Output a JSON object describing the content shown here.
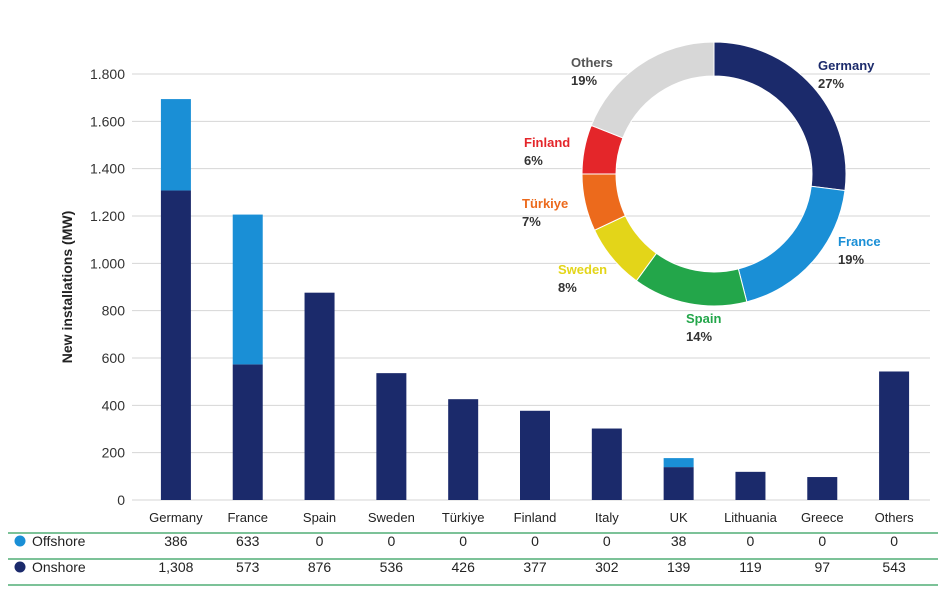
{
  "colors": {
    "offshore": "#1a8fd6",
    "onshore": "#1b2a6b",
    "grid": "#d6d6d6",
    "table_line": "#2e9e5b",
    "Germany": "#1b2a6b",
    "France": "#1a8fd6",
    "Spain": "#23a64a",
    "Sweden": "#e3d519",
    "Türkiye": "#ec6a1c",
    "Finland": "#e4262a",
    "Others": "#d7d7d7"
  },
  "chart_data": [
    {
      "type": "bar",
      "stacked": true,
      "ylabel": "New installations (MW)",
      "ylim": [
        0,
        1800
      ],
      "yticks": [
        0,
        200,
        400,
        600,
        800,
        1000,
        1200,
        1400,
        1600,
        1800
      ],
      "ytick_labels": [
        "0",
        "200",
        "400",
        "600",
        "800",
        "1.000",
        "1.200",
        "1.400",
        "1.600",
        "1.800"
      ],
      "categories": [
        "Germany",
        "France",
        "Spain",
        "Sweden",
        "Türkiye",
        "Finland",
        "Italy",
        "UK",
        "Lithuania",
        "Greece",
        "Others"
      ],
      "series": [
        {
          "name": "Onshore",
          "values": [
            1308,
            573,
            876,
            536,
            426,
            377,
            302,
            139,
            119,
            97,
            543
          ],
          "labels": [
            "1,308",
            "573",
            "876",
            "536",
            "426",
            "377",
            "302",
            "139",
            "119",
            "97",
            "543"
          ]
        },
        {
          "name": "Offshore",
          "values": [
            386,
            633,
            0,
            0,
            0,
            0,
            0,
            38,
            0,
            0,
            0
          ],
          "labels": [
            "386",
            "633",
            "0",
            "0",
            "0",
            "0",
            "0",
            "38",
            "0",
            "0",
            "0"
          ]
        }
      ]
    },
    {
      "type": "pie",
      "donut": true,
      "slices": [
        {
          "name": "Germany",
          "value": 27,
          "label": "27%"
        },
        {
          "name": "France",
          "value": 19,
          "label": "19%"
        },
        {
          "name": "Spain",
          "value": 14,
          "label": "14%"
        },
        {
          "name": "Sweden",
          "value": 8,
          "label": "8%"
        },
        {
          "name": "Türkiye",
          "value": 7,
          "label": "7%"
        },
        {
          "name": "Finland",
          "value": 6,
          "label": "6%"
        },
        {
          "name": "Others",
          "value": 19,
          "label": "19%"
        }
      ]
    }
  ]
}
